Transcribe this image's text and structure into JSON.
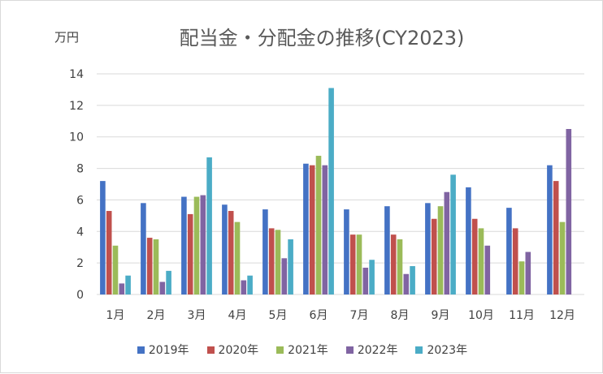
{
  "chart_data": {
    "type": "bar",
    "title": "配当金・分配金の推移(CY2023)",
    "unit_label": "万円",
    "categories": [
      "1月",
      "2月",
      "3月",
      "4月",
      "5月",
      "6月",
      "7月",
      "8月",
      "9月",
      "10月",
      "11月",
      "12月"
    ],
    "ylim": [
      0,
      14
    ],
    "yticks": [
      "0",
      "2",
      "4",
      "6",
      "8",
      "10",
      "12",
      "14"
    ],
    "grid": true,
    "legend_position": "bottom",
    "series": [
      {
        "name": "2019年",
        "color": "#4472c4",
        "values": [
          7.2,
          5.8,
          6.2,
          5.7,
          5.4,
          8.3,
          5.4,
          5.6,
          5.8,
          6.8,
          5.5,
          8.2
        ]
      },
      {
        "name": "2020年",
        "color": "#c0504d",
        "values": [
          5.3,
          3.6,
          5.1,
          5.3,
          4.2,
          8.2,
          3.8,
          3.8,
          4.8,
          4.8,
          4.2,
          7.2
        ]
      },
      {
        "name": "2021年",
        "color": "#9bbb59",
        "values": [
          3.1,
          3.5,
          6.2,
          4.6,
          4.1,
          8.8,
          3.8,
          3.5,
          5.6,
          4.2,
          2.1,
          4.6
        ]
      },
      {
        "name": "2022年",
        "color": "#8064a2",
        "values": [
          0.7,
          0.8,
          6.3,
          0.9,
          2.3,
          8.2,
          1.7,
          1.3,
          6.5,
          3.1,
          2.7,
          10.5
        ]
      },
      {
        "name": "2023年",
        "color": "#4bacc6",
        "values": [
          1.2,
          1.5,
          8.7,
          1.2,
          3.5,
          13.1,
          2.2,
          1.8,
          7.6,
          null,
          null,
          null
        ]
      }
    ]
  }
}
